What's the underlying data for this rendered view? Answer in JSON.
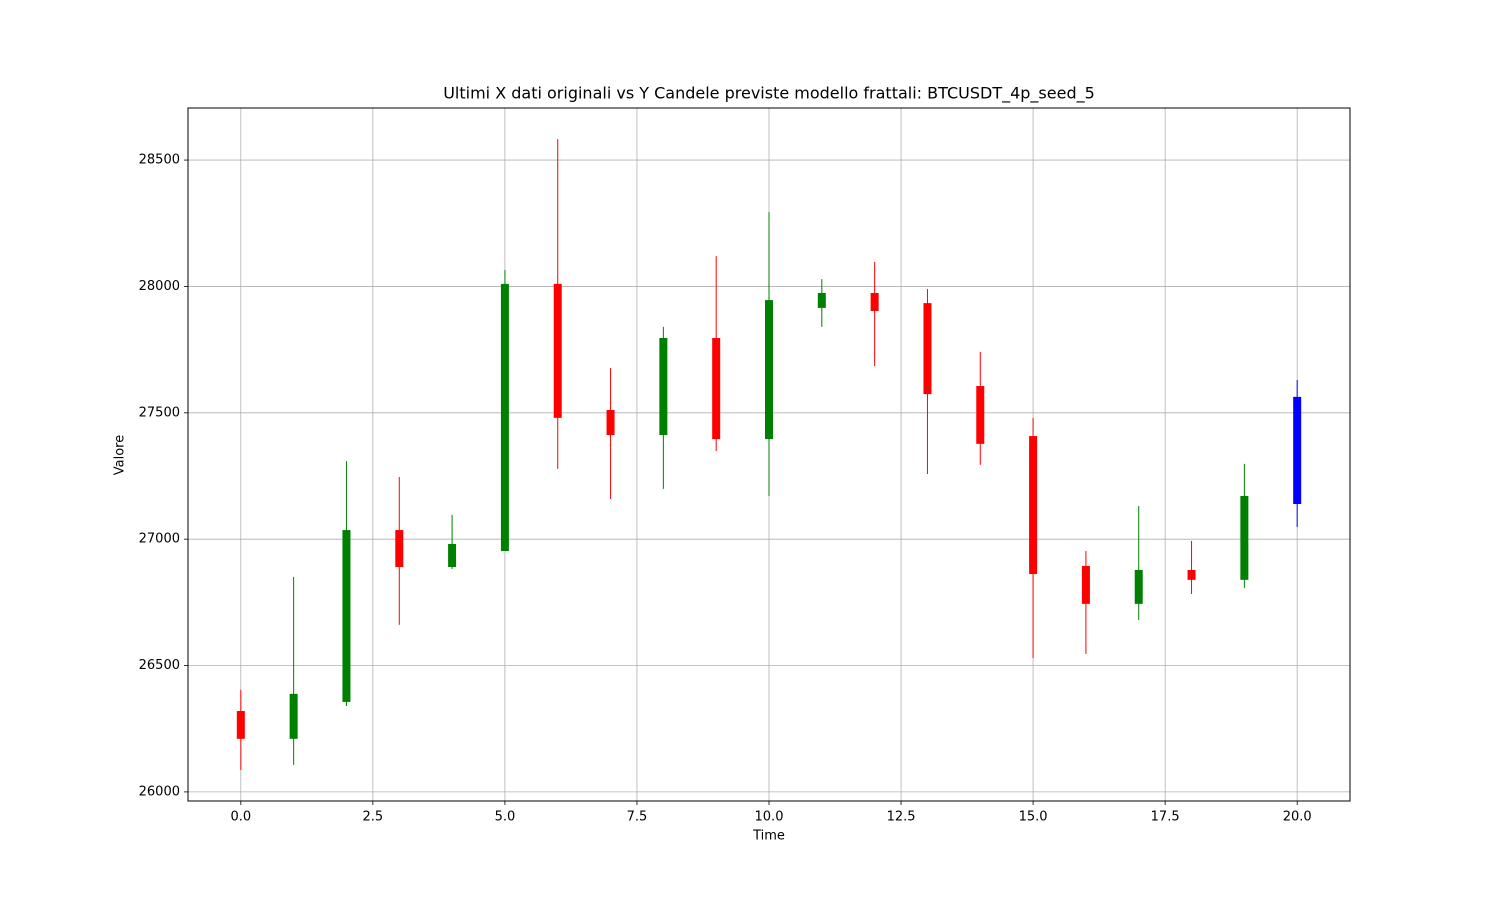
{
  "chart_data": {
    "type": "candlestick",
    "title": "Ultimi X dati originali vs Y Candele previste modello frattali: BTCUSDT_4p_seed_5",
    "x_label": "Time",
    "y_label": "Valore",
    "x": [
      0,
      1,
      2,
      3,
      4,
      5,
      6,
      7,
      8,
      9,
      10,
      11,
      12,
      13,
      14,
      15,
      16,
      17,
      18,
      19,
      20
    ],
    "open": [
      26320,
      26210,
      26356,
      27036,
      26890,
      26953,
      28010,
      27511,
      27412,
      27796,
      27396,
      27915,
      27974,
      27934,
      27606,
      27408,
      26894,
      26744,
      26878,
      26839,
      27139
    ],
    "high": [
      26404,
      26851,
      27309,
      27246,
      27096,
      28065,
      28583,
      27677,
      27840,
      28120,
      28294,
      28029,
      28097,
      27990,
      27741,
      27480,
      26953,
      27131,
      26993,
      27298,
      27630
    ],
    "low": [
      26087,
      26107,
      26340,
      26661,
      26882,
      26953,
      27278,
      27159,
      27199,
      27349,
      27171,
      27840,
      27685,
      27258,
      27294,
      26530,
      26546,
      26680,
      26783,
      26807,
      27048
    ],
    "close": [
      26210,
      26388,
      27036,
      26890,
      26981,
      28010,
      27480,
      27412,
      27796,
      27396,
      27946,
      27974,
      27903,
      27574,
      27377,
      26862,
      26744,
      26878,
      26839,
      27171,
      27563
    ],
    "colors": [
      "red",
      "green",
      "green",
      "red",
      "green",
      "green",
      "red",
      "red",
      "green",
      "red",
      "green",
      "green",
      "red",
      "red",
      "red",
      "red",
      "red",
      "green",
      "red",
      "green",
      "blue"
    ],
    "xlim": [
      -1,
      21
    ],
    "ylim": [
      25964,
      28706
    ],
    "xticks": [
      {
        "value": 0,
        "label": "0.0"
      },
      {
        "value": 2.5,
        "label": "2.5"
      },
      {
        "value": 5,
        "label": "5.0"
      },
      {
        "value": 7.5,
        "label": "7.5"
      },
      {
        "value": 10,
        "label": "10.0"
      },
      {
        "value": 12.5,
        "label": "12.5"
      },
      {
        "value": 15,
        "label": "15.0"
      },
      {
        "value": 17.5,
        "label": "17.5"
      },
      {
        "value": 20,
        "label": "20.0"
      }
    ],
    "yticks": [
      26000,
      26500,
      27000,
      27500,
      28000,
      28500
    ],
    "grid": true
  }
}
